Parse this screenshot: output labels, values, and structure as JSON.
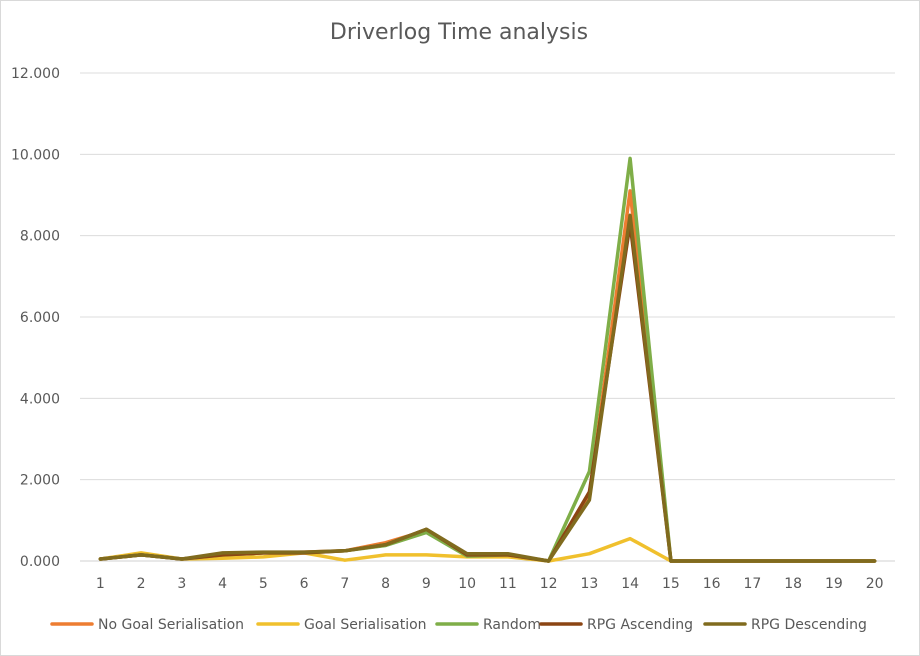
{
  "chart_data": {
    "type": "line",
    "title": "Driverlog Time analysis",
    "xlabel": "",
    "ylabel": "",
    "ylim": [
      0,
      12
    ],
    "yticks": [
      "0.000",
      "2.000",
      "4.000",
      "6.000",
      "8.000",
      "10.000",
      "12.000"
    ],
    "categories": [
      "1",
      "2",
      "3",
      "4",
      "5",
      "6",
      "7",
      "8",
      "9",
      "10",
      "11",
      "12",
      "13",
      "14",
      "15",
      "16",
      "17",
      "18",
      "19",
      "20"
    ],
    "grid": "horizontal",
    "legend_position": "bottom",
    "series": [
      {
        "name": "No Goal Serialisation",
        "color": "#ed7d31",
        "values": [
          0.05,
          0.15,
          0.05,
          0.15,
          0.2,
          0.22,
          0.25,
          0.45,
          0.75,
          0.15,
          0.15,
          0.0,
          1.6,
          9.1,
          0.0,
          0.0,
          0.0,
          0.0,
          0.0,
          0.0
        ]
      },
      {
        "name": "Goal Serialisation",
        "color": "#f0c02d",
        "values": [
          0.05,
          0.2,
          0.05,
          0.07,
          0.1,
          0.2,
          0.02,
          0.15,
          0.15,
          0.1,
          0.1,
          0.0,
          0.18,
          0.55,
          0.0,
          0.0,
          0.0,
          0.0,
          0.0,
          0.0
        ]
      },
      {
        "name": "Random",
        "color": "#7fae48",
        "values": [
          0.05,
          0.15,
          0.05,
          0.15,
          0.2,
          0.2,
          0.25,
          0.38,
          0.7,
          0.12,
          0.15,
          0.0,
          2.2,
          9.9,
          0.0,
          0.0,
          0.0,
          0.0,
          0.0,
          0.0
        ]
      },
      {
        "name": "RPG Ascending",
        "color": "#8b4513",
        "values": [
          0.05,
          0.15,
          0.05,
          0.15,
          0.2,
          0.2,
          0.25,
          0.4,
          0.78,
          0.15,
          0.15,
          0.0,
          1.7,
          8.3,
          0.0,
          0.0,
          0.0,
          0.0,
          0.0,
          0.0
        ]
      },
      {
        "name": "RPG Descending",
        "color": "#806b1e",
        "values": [
          0.05,
          0.15,
          0.05,
          0.2,
          0.22,
          0.22,
          0.25,
          0.4,
          0.78,
          0.18,
          0.18,
          0.0,
          1.5,
          8.5,
          0.0,
          0.0,
          0.0,
          0.0,
          0.0,
          0.0
        ]
      }
    ]
  }
}
